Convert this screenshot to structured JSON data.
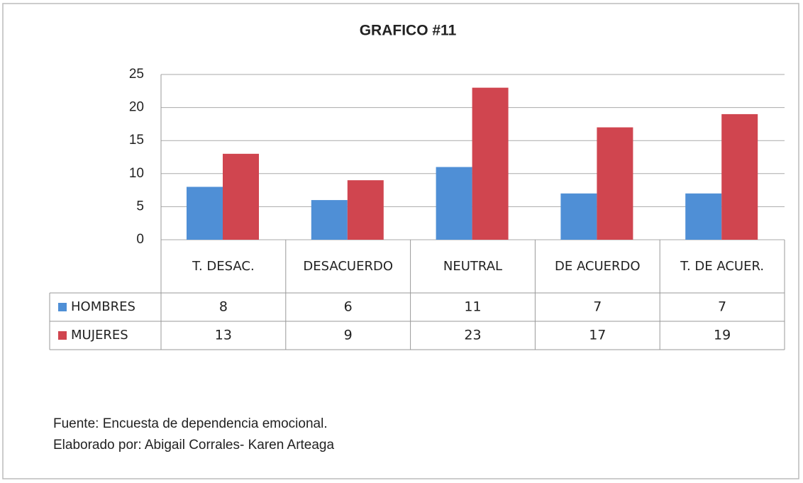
{
  "chart_data": {
    "type": "bar",
    "title": "GRAFICO #11",
    "categories": [
      "T. DESAC.",
      "DESACUERDO",
      "NEUTRAL",
      "DE ACUERDO",
      "T. DE ACUER."
    ],
    "series": [
      {
        "name": "HOMBRES",
        "color": "#4f8fd6",
        "values": [
          8,
          6,
          11,
          7,
          7
        ]
      },
      {
        "name": "MUJERES",
        "color": "#d0454f",
        "values": [
          13,
          9,
          23,
          17,
          19
        ]
      }
    ],
    "ylim": [
      0,
      25
    ],
    "yticks": [
      0,
      5,
      10,
      15,
      20,
      25
    ],
    "grid": true,
    "data_table": true,
    "notes": [
      "Fuente: Encuesta de dependencia emocional.",
      "Elaborado por: Abigail Corrales- Karen Arteaga"
    ]
  }
}
